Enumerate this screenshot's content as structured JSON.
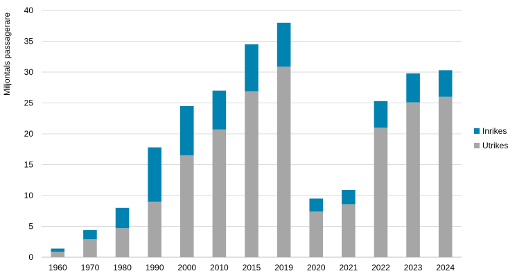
{
  "chart_data": {
    "type": "bar",
    "stacked": true,
    "title": "",
    "xlabel": "",
    "ylabel": "Miljontals passagerare",
    "ylim": [
      0,
      40
    ],
    "yticks": [
      0,
      5,
      10,
      15,
      20,
      25,
      30,
      35,
      40
    ],
    "grid": true,
    "legend_position": "right",
    "categories": [
      "1960",
      "1970",
      "1980",
      "1990",
      "2000",
      "2010",
      "2015",
      "2019",
      "2020",
      "2021",
      "2022",
      "2023",
      "2024"
    ],
    "series": [
      {
        "name": "Utrikes",
        "color": "#a6a6a6",
        "values": [
          0.9,
          2.9,
          4.7,
          9.0,
          16.5,
          20.7,
          26.9,
          30.9,
          7.4,
          8.6,
          21.0,
          25.1,
          26.0
        ]
      },
      {
        "name": "Inrikes",
        "color": "#0083b0",
        "values": [
          0.5,
          1.5,
          3.3,
          8.8,
          8.0,
          6.3,
          7.6,
          7.1,
          2.1,
          2.3,
          4.3,
          4.7,
          4.3
        ]
      }
    ],
    "legend_order": [
      "Inrikes",
      "Utrikes"
    ]
  }
}
